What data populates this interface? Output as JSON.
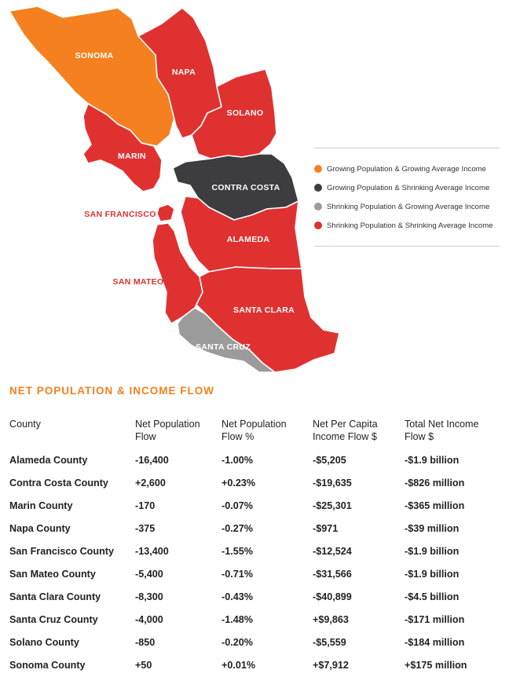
{
  "colors": {
    "growing_growing": "#f4801f",
    "growing_shrinking": "#3d3d3f",
    "shrinking_growing": "#9b9b9b",
    "shrinking_shrinking": "#e03131",
    "title_accent": "#f4801f"
  },
  "map": {
    "counties": [
      {
        "name": "SONOMA",
        "category": "growing_growing"
      },
      {
        "name": "NAPA",
        "category": "shrinking_shrinking"
      },
      {
        "name": "SOLANO",
        "category": "shrinking_shrinking"
      },
      {
        "name": "MARIN",
        "category": "shrinking_shrinking"
      },
      {
        "name": "CONTRA COSTA",
        "category": "growing_shrinking"
      },
      {
        "name": "SAN FRANCISCO",
        "category": "shrinking_shrinking"
      },
      {
        "name": "ALAMEDA",
        "category": "shrinking_shrinking"
      },
      {
        "name": "SAN MATEO",
        "category": "shrinking_shrinking"
      },
      {
        "name": "SANTA CLARA",
        "category": "shrinking_shrinking"
      },
      {
        "name": "SANTA CRUZ",
        "category": "shrinking_growing"
      }
    ]
  },
  "legend": {
    "items": [
      {
        "label": "Growing Population & Growing Average Income",
        "color": "#f4801f"
      },
      {
        "label": "Growing Population & Shrinking Average Income",
        "color": "#3d3d3f"
      },
      {
        "label": "Shrinking Population & Growing Average Income",
        "color": "#9b9b9b"
      },
      {
        "label": "Shrinking Population & Shrinking Average Income",
        "color": "#e03131"
      }
    ]
  },
  "section_title": "NET POPULATION & INCOME FLOW",
  "table": {
    "headers": [
      [
        "County"
      ],
      [
        "Net Population",
        "Flow"
      ],
      [
        "Net Population",
        "Flow %"
      ],
      [
        "Net Per Capita",
        "Income Flow $"
      ],
      [
        "Total Net Income",
        "Flow $"
      ]
    ],
    "rows": [
      [
        "Alameda County",
        "-16,400",
        "-1.00%",
        "-$5,205",
        "-$1.9 billion"
      ],
      [
        "Contra Costa County",
        "+2,600",
        "+0.23%",
        "-$19,635",
        "-$826 million"
      ],
      [
        "Marin County",
        "-170",
        "-0.07%",
        "-$25,301",
        "-$365 million"
      ],
      [
        "Napa County",
        "-375",
        "-0.27%",
        "-$971",
        "-$39 million"
      ],
      [
        "San Francisco County",
        "-13,400",
        "-1.55%",
        "-$12,524",
        "-$1.9 billion"
      ],
      [
        "San Mateo County",
        "-5,400",
        "-0.71%",
        "-$31,566",
        "-$1.9 billion"
      ],
      [
        "Santa Clara County",
        "-8,300",
        "-0.43%",
        "-$40,899",
        "-$4.5 billion"
      ],
      [
        "Santa Cruz County",
        "-4,000",
        "-1.48%",
        "+$9,863",
        "-$171 million"
      ],
      [
        "Solano County",
        "-850",
        "-0.20%",
        "-$5,559",
        "-$184 million"
      ],
      [
        "Sonoma County",
        "+50",
        "+0.01%",
        "+$7,912",
        "+$175 million"
      ]
    ]
  }
}
